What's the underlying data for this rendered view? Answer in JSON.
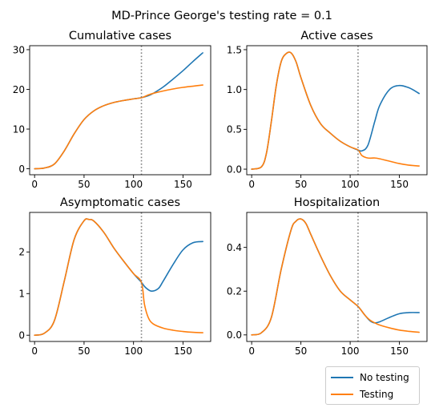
{
  "figure_title": "MD-Prince George's testing rate = 0.1",
  "colors": {
    "no_testing": "#1f77b4",
    "testing": "#ff7f0e",
    "intervention_line": "#808080"
  },
  "legend": [
    {
      "label": "No testing",
      "color": "#1f77b4"
    },
    {
      "label": "Testing",
      "color": "#ff7f0e"
    }
  ],
  "chart_data": [
    {
      "type": "line",
      "title": "Cumulative cases",
      "xlim": [
        -5,
        178
      ],
      "ylim": [
        -1.5,
        31
      ],
      "xticks": [
        0,
        50,
        100,
        150
      ],
      "yticks": [
        0,
        10,
        20,
        30
      ],
      "vline_x": 108,
      "series": [
        {
          "name": "No testing",
          "x": [
            0,
            10,
            20,
            30,
            40,
            50,
            60,
            70,
            80,
            90,
            100,
            108,
            115,
            120,
            130,
            140,
            150,
            160,
            170
          ],
          "values": [
            0,
            0.2,
            1.2,
            4.5,
            8.8,
            12.4,
            14.6,
            15.9,
            16.7,
            17.2,
            17.6,
            17.9,
            18.4,
            19,
            20.6,
            22.6,
            24.7,
            27,
            29.2
          ]
        },
        {
          "name": "Testing",
          "x": [
            0,
            10,
            20,
            30,
            40,
            50,
            60,
            70,
            80,
            90,
            100,
            108,
            115,
            120,
            130,
            140,
            150,
            160,
            170
          ],
          "values": [
            0,
            0.2,
            1.2,
            4.5,
            8.8,
            12.4,
            14.6,
            15.9,
            16.7,
            17.2,
            17.6,
            17.9,
            18.6,
            19,
            19.6,
            20.1,
            20.5,
            20.8,
            21.1
          ]
        }
      ]
    },
    {
      "type": "line",
      "title": "Active cases",
      "xlim": [
        -5,
        178
      ],
      "ylim": [
        -0.07,
        1.55
      ],
      "xticks": [
        0,
        50,
        100,
        150
      ],
      "yticks": [
        0.0,
        0.5,
        1.0,
        1.5
      ],
      "vline_x": 108,
      "series": [
        {
          "name": "No testing",
          "x": [
            0,
            10,
            15,
            20,
            25,
            30,
            35,
            40,
            45,
            50,
            60,
            70,
            80,
            90,
            100,
            108,
            112,
            118,
            125,
            130,
            140,
            150,
            160,
            170
          ],
          "values": [
            0,
            0.03,
            0.2,
            0.6,
            1.05,
            1.35,
            1.45,
            1.46,
            1.35,
            1.15,
            0.8,
            0.57,
            0.45,
            0.35,
            0.28,
            0.24,
            0.23,
            0.3,
            0.6,
            0.8,
            1.0,
            1.05,
            1.02,
            0.95
          ]
        },
        {
          "name": "Testing",
          "x": [
            0,
            10,
            15,
            20,
            25,
            30,
            35,
            40,
            45,
            50,
            60,
            70,
            80,
            90,
            100,
            108,
            112,
            118,
            125,
            130,
            140,
            150,
            160,
            170
          ],
          "values": [
            0,
            0.03,
            0.2,
            0.6,
            1.05,
            1.35,
            1.45,
            1.46,
            1.35,
            1.15,
            0.8,
            0.57,
            0.45,
            0.35,
            0.28,
            0.24,
            0.17,
            0.14,
            0.14,
            0.13,
            0.1,
            0.07,
            0.05,
            0.04
          ]
        }
      ]
    },
    {
      "type": "line",
      "title": "Asymptomatic cases",
      "xlim": [
        -5,
        178
      ],
      "ylim": [
        -0.15,
        2.95
      ],
      "xticks": [
        0,
        50,
        100,
        150
      ],
      "yticks": [
        0,
        1,
        2
      ],
      "vline_x": 108,
      "series": [
        {
          "name": "No testing",
          "x": [
            0,
            10,
            20,
            30,
            40,
            50,
            55,
            60,
            70,
            80,
            90,
            100,
            108,
            112,
            118,
            125,
            130,
            140,
            150,
            160,
            170
          ],
          "values": [
            0,
            0.05,
            0.35,
            1.3,
            2.3,
            2.75,
            2.78,
            2.74,
            2.47,
            2.1,
            1.78,
            1.48,
            1.27,
            1.15,
            1.06,
            1.12,
            1.3,
            1.7,
            2.05,
            2.22,
            2.25
          ]
        },
        {
          "name": "Testing",
          "x": [
            0,
            10,
            20,
            30,
            40,
            50,
            55,
            60,
            70,
            80,
            90,
            100,
            108,
            111,
            115,
            120,
            130,
            140,
            150,
            160,
            170
          ],
          "values": [
            0,
            0.05,
            0.35,
            1.3,
            2.3,
            2.75,
            2.78,
            2.74,
            2.47,
            2.1,
            1.78,
            1.48,
            1.27,
            0.75,
            0.42,
            0.27,
            0.17,
            0.12,
            0.09,
            0.07,
            0.06
          ]
        }
      ]
    },
    {
      "type": "line",
      "title": "Hospitalization",
      "xlim": [
        -5,
        178
      ],
      "ylim": [
        -0.03,
        0.56
      ],
      "xticks": [
        0,
        50,
        100,
        150
      ],
      "yticks": [
        0.0,
        0.2,
        0.4
      ],
      "vline_x": 108,
      "series": [
        {
          "name": "No testing",
          "x": [
            0,
            10,
            20,
            30,
            40,
            45,
            50,
            55,
            60,
            70,
            80,
            90,
            100,
            108,
            115,
            120,
            125,
            130,
            140,
            150,
            160,
            170
          ],
          "values": [
            0,
            0.01,
            0.08,
            0.3,
            0.48,
            0.52,
            0.53,
            0.51,
            0.46,
            0.36,
            0.27,
            0.2,
            0.16,
            0.13,
            0.09,
            0.065,
            0.055,
            0.06,
            0.08,
            0.097,
            0.102,
            0.102
          ]
        },
        {
          "name": "Testing",
          "x": [
            0,
            10,
            20,
            30,
            40,
            45,
            50,
            55,
            60,
            70,
            80,
            90,
            100,
            108,
            115,
            120,
            125,
            130,
            140,
            150,
            160,
            170
          ],
          "values": [
            0,
            0.01,
            0.08,
            0.3,
            0.48,
            0.52,
            0.53,
            0.51,
            0.46,
            0.36,
            0.27,
            0.2,
            0.16,
            0.13,
            0.09,
            0.068,
            0.055,
            0.045,
            0.032,
            0.022,
            0.016,
            0.012
          ]
        }
      ]
    }
  ]
}
